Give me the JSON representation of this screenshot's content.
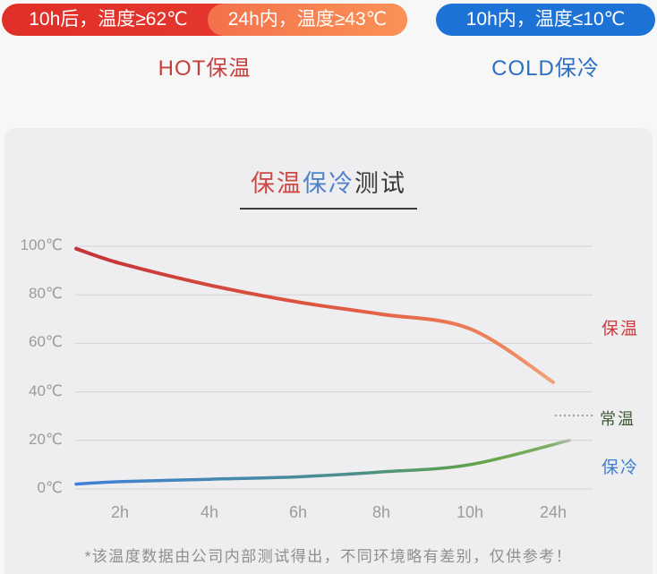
{
  "badges": {
    "hot_left": "10h后，温度≥62℃",
    "hot_right": "24h内，温度≥43℃",
    "cold": "10h内，温度≤10℃",
    "hot_label": "HOT保温",
    "cold_label": "COLD保冷"
  },
  "title": {
    "part_hot": "保温",
    "part_cold": "保冷",
    "part_rest": "测试"
  },
  "chart_data": {
    "type": "line",
    "title": "保温保冷测试",
    "x_categories": [
      "2h",
      "4h",
      "6h",
      "8h",
      "10h",
      "24h"
    ],
    "y_tick_labels": [
      "100℃",
      "80℃",
      "60℃",
      "40℃",
      "20℃",
      "0℃"
    ],
    "y_tick_values": [
      100,
      80,
      60,
      40,
      20,
      0
    ],
    "ylim": [
      0,
      100
    ],
    "grid": true,
    "legend_position": "right",
    "series": [
      {
        "name": "保温",
        "hours": [
          0,
          2,
          4,
          6,
          8,
          10,
          24
        ],
        "values": [
          99,
          93,
          84,
          77,
          72,
          66,
          44
        ],
        "color_start": "#c43236",
        "color_mid": "#e05a40",
        "color_end": "#f2a47e"
      },
      {
        "name": "保冷",
        "hours": [
          0,
          2,
          4,
          6,
          8,
          10,
          24
        ],
        "values": [
          2,
          3,
          4,
          5,
          7,
          10,
          20
        ],
        "color_start": "#3f80d8",
        "color_mid": "#55984f",
        "color_end": "#b9bdb4"
      }
    ],
    "room_temp_legend": {
      "label": "常温",
      "approx_value": 30
    },
    "labels": {
      "hot": "保温",
      "room": "常温",
      "cold": "保冷"
    }
  },
  "footnote": "*该温度数据由公司内部测试得出，不同环境略有差别，仅供参考！",
  "colors": {
    "hot_pill": "#e4342d",
    "hot_pill_orange": "#f88350",
    "cold_pill": "#1d72d6",
    "hot_text": "#c5403c",
    "cold_text": "#2b6fc3",
    "card_bg": "#eeedef",
    "grid_line": "#d4d3d4",
    "axis_text": "#9c9c9c"
  }
}
